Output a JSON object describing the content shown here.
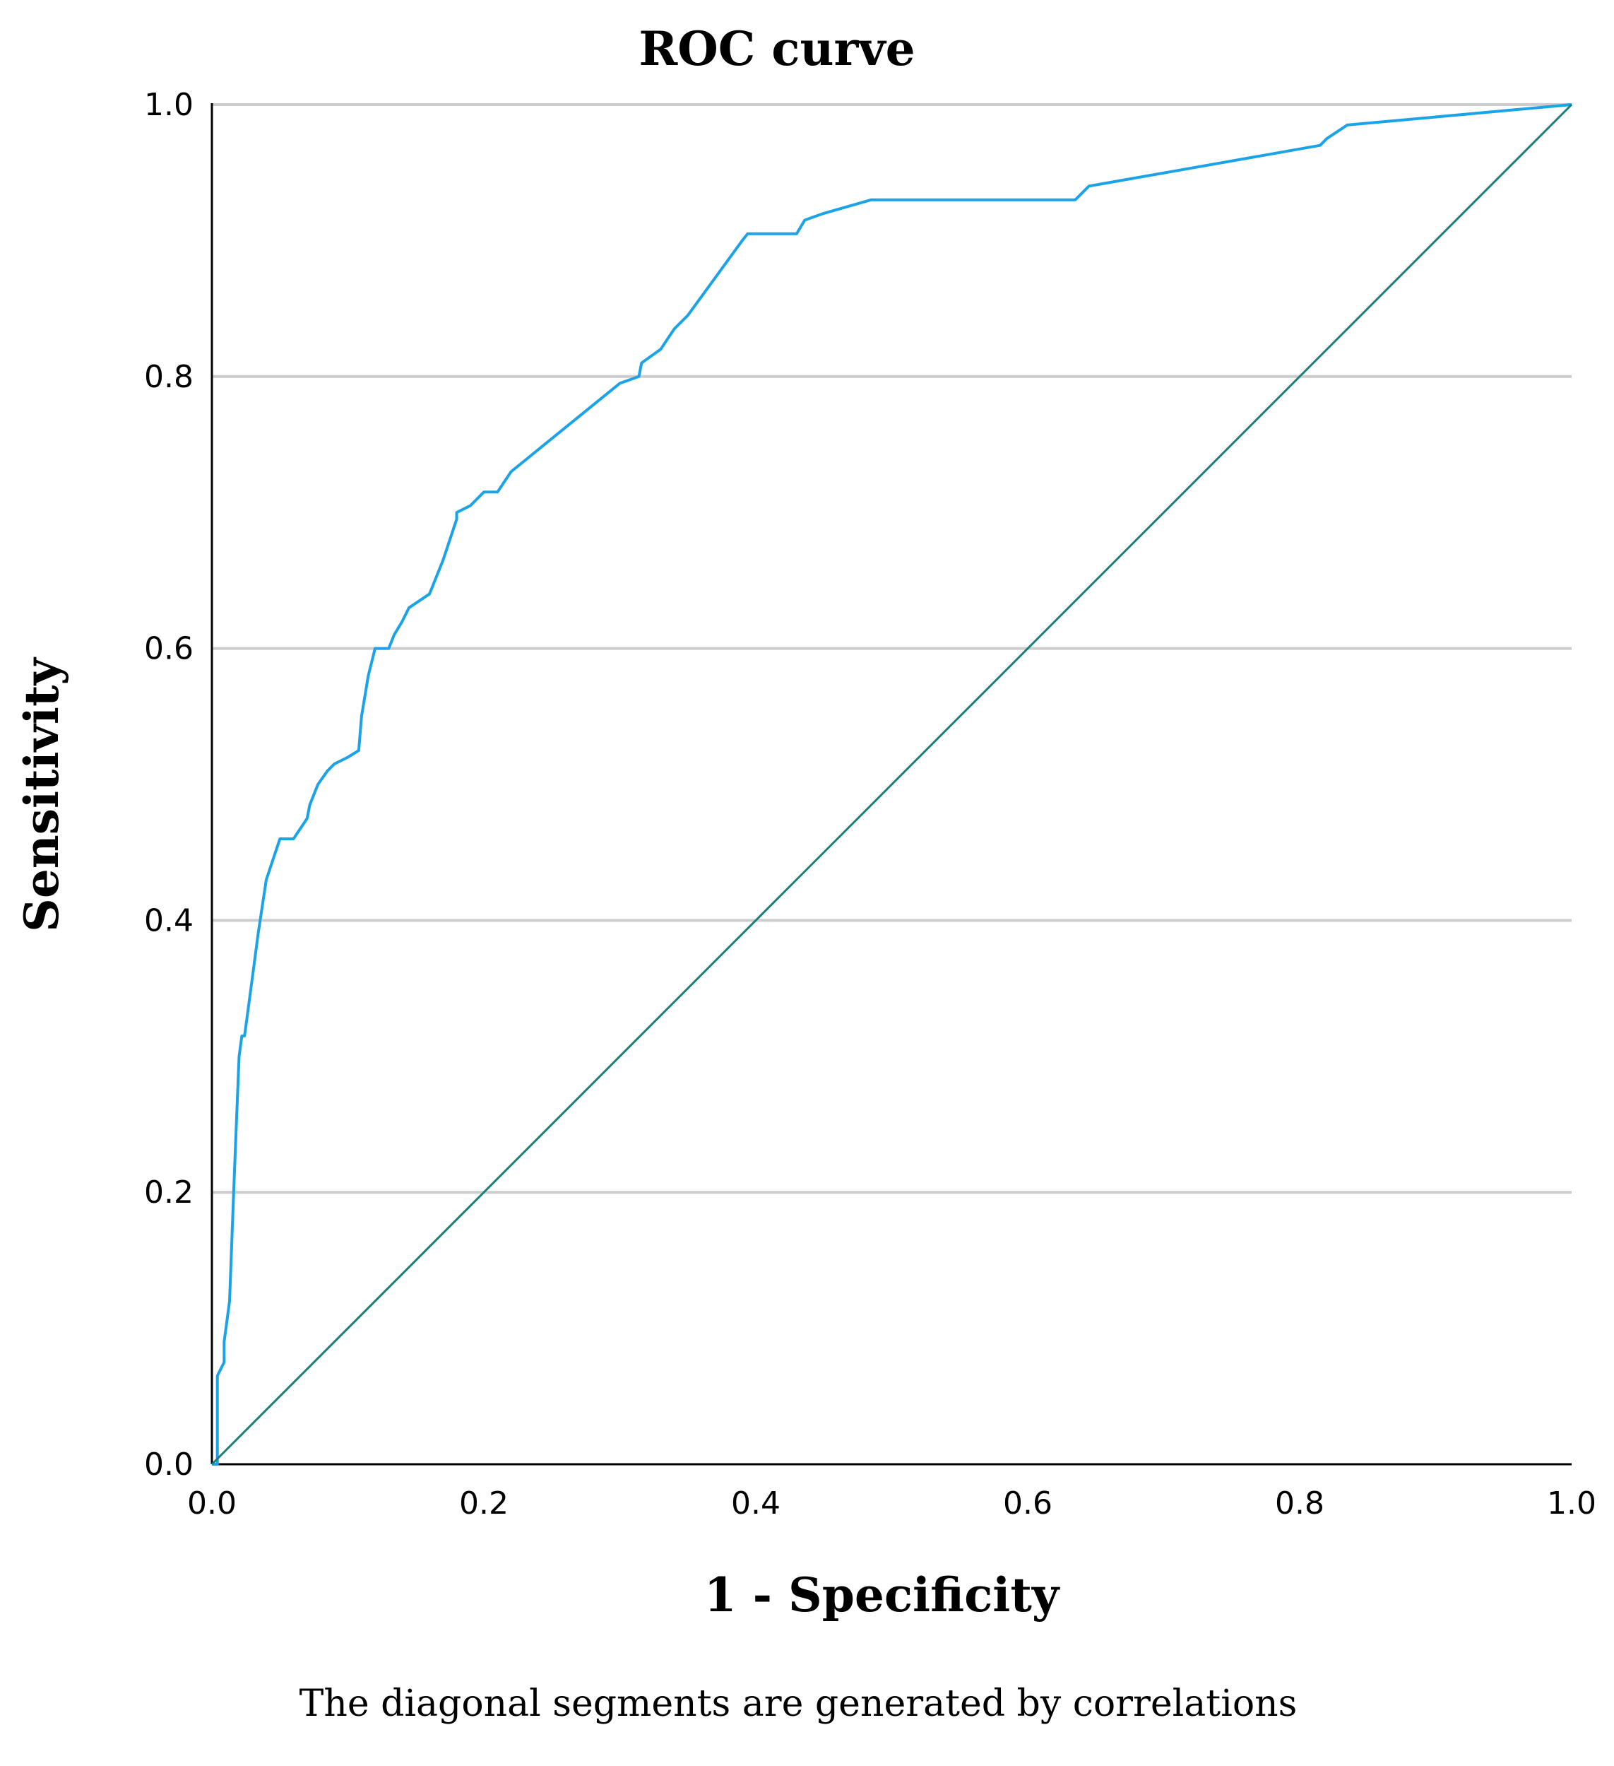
{
  "chart_data": {
    "type": "line",
    "title": "ROC curve",
    "xlabel": "1 - Specificity",
    "ylabel": "Sensitivity",
    "footnote": "The diagonal segments are generated by correlations",
    "xlim": [
      0,
      1
    ],
    "ylim": [
      0,
      1
    ],
    "xticks": [
      "0.0",
      "0.2",
      "0.4",
      "0.6",
      "0.8",
      "1.0"
    ],
    "yticks": [
      "0.0",
      "0.2",
      "0.4",
      "0.6",
      "0.8",
      "1.0"
    ],
    "grid": "horizontal",
    "colors": {
      "roc": "#1aa3e8",
      "reference": "#1a7f7a",
      "grid": "#cccccc",
      "axis": "#000000"
    },
    "series": [
      {
        "x": [
          0.0,
          0.004,
          0.004,
          0.009,
          0.009,
          0.013,
          0.016,
          0.018,
          0.02,
          0.022,
          0.024,
          0.026,
          0.03,
          0.034,
          0.04,
          0.05,
          0.055,
          0.06,
          0.07,
          0.072,
          0.078,
          0.085,
          0.09,
          0.1,
          0.108,
          0.11,
          0.115,
          0.12,
          0.125,
          0.13,
          0.134,
          0.14,
          0.145,
          0.16,
          0.17,
          0.18,
          0.18,
          0.19,
          0.2,
          0.21,
          0.22,
          0.3,
          0.314,
          0.316,
          0.33,
          0.34,
          0.35,
          0.39,
          0.394,
          0.43,
          0.436,
          0.45,
          0.485,
          0.635,
          0.64,
          0.645,
          0.815,
          0.82,
          0.835,
          1.0
        ],
        "y": [
          0.0,
          0.0,
          0.065,
          0.075,
          0.09,
          0.12,
          0.2,
          0.25,
          0.3,
          0.315,
          0.315,
          0.33,
          0.36,
          0.39,
          0.43,
          0.46,
          0.46,
          0.46,
          0.475,
          0.485,
          0.5,
          0.51,
          0.515,
          0.52,
          0.525,
          0.55,
          0.58,
          0.6,
          0.6,
          0.6,
          0.61,
          0.62,
          0.63,
          0.64,
          0.665,
          0.695,
          0.7,
          0.705,
          0.715,
          0.715,
          0.73,
          0.795,
          0.8,
          0.81,
          0.82,
          0.835,
          0.845,
          0.9,
          0.905,
          0.905,
          0.915,
          0.92,
          0.93,
          0.93,
          0.935,
          0.94,
          0.97,
          0.975,
          0.985,
          1.0
        ]
      },
      {
        "x": [
          0,
          1
        ],
        "y": [
          0,
          1
        ]
      }
    ]
  }
}
